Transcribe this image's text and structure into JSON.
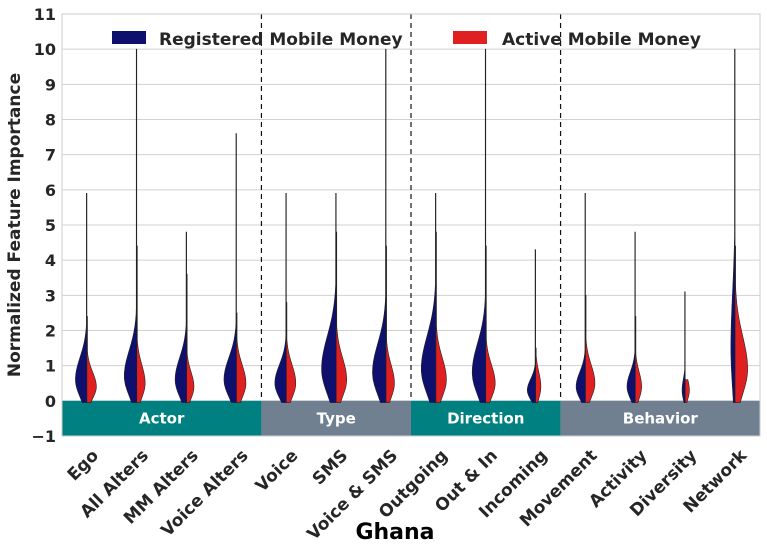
{
  "chart_data": {
    "type": "violin",
    "title": "",
    "xlabel": "Ghana",
    "ylabel": "Normalized Feature Importance",
    "ylim": [
      -1,
      11
    ],
    "yticks": [
      "−1",
      "0",
      "1",
      "2",
      "3",
      "4",
      "5",
      "6",
      "7",
      "8",
      "9",
      "10",
      "11"
    ],
    "grid": true,
    "legend_position": "top",
    "categories": [
      "Ego",
      "All Alters",
      "MM Alters",
      "Voice Alters",
      "Voice",
      "SMS",
      "Voice & SMS",
      "Outgoing",
      "Out & In",
      "Incoming",
      "Movement",
      "Activity",
      "Diversity",
      "Network"
    ],
    "groups": [
      {
        "label": "Actor",
        "start": 0,
        "end": 3,
        "color": "#008080"
      },
      {
        "label": "Type",
        "start": 4,
        "end": 6,
        "color": "#708090"
      },
      {
        "label": "Direction",
        "start": 7,
        "end": 9,
        "color": "#008080"
      },
      {
        "label": "Behavior",
        "start": 10,
        "end": 13,
        "color": "#708090"
      }
    ],
    "series": [
      {
        "name": "Registered Mobile Money",
        "color": "#0f0f6e",
        "side": "left",
        "max": [
          5.9,
          10.0,
          4.8,
          7.6,
          5.9,
          5.9,
          10.0,
          5.9,
          10.0,
          4.3,
          5.9,
          4.8,
          3.1,
          10.0
        ],
        "mode": [
          0.6,
          0.7,
          0.6,
          0.6,
          0.5,
          0.9,
          0.8,
          0.9,
          0.8,
          0.3,
          0.4,
          0.4,
          0.3,
          1.5
        ],
        "width": [
          0.55,
          0.6,
          0.55,
          0.6,
          0.55,
          0.7,
          0.65,
          0.7,
          0.65,
          0.4,
          0.45,
          0.4,
          0.15,
          0.2
        ]
      },
      {
        "name": "Active Mobile Money",
        "color": "#e02020",
        "side": "right",
        "max": [
          2.4,
          4.4,
          3.6,
          2.5,
          2.8,
          4.8,
          4.4,
          4.8,
          4.4,
          1.5,
          3.0,
          2.4,
          0.6,
          4.4
        ],
        "mode": [
          0.4,
          0.5,
          0.4,
          0.5,
          0.5,
          0.6,
          0.5,
          0.6,
          0.5,
          0.4,
          0.5,
          0.4,
          0.3,
          0.9
        ],
        "width": [
          0.45,
          0.4,
          0.35,
          0.45,
          0.45,
          0.5,
          0.4,
          0.5,
          0.45,
          0.25,
          0.45,
          0.3,
          0.2,
          0.6
        ]
      }
    ]
  }
}
